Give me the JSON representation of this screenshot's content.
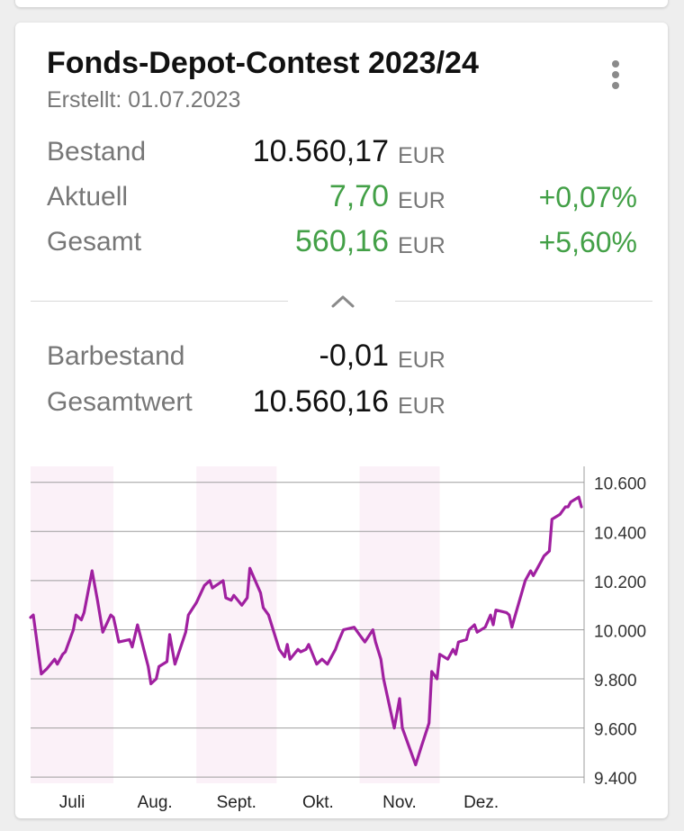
{
  "header": {
    "title": "Fonds-Depot-Contest 2023/24",
    "created": "Erstellt: 01.07.2023"
  },
  "summary": {
    "currency": "EUR",
    "rows": [
      {
        "label": "Bestand",
        "value": "10.560,17",
        "percent": ""
      },
      {
        "label": "Aktuell",
        "value": "7,70",
        "percent": "+0,07%"
      },
      {
        "label": "Gesamt",
        "value": "560,16",
        "percent": "+5,60%"
      }
    ],
    "cash": {
      "label": "Barbestand",
      "value": "-0,01"
    },
    "total": {
      "label": "Gesamtwert",
      "value": "10.560,16"
    }
  },
  "colors": {
    "positive": "#43a047",
    "line": "#a020a0",
    "band": "#fbf1f8"
  },
  "icons": {
    "menu": "more-vertical-icon",
    "collapse": "chevron-up-icon"
  },
  "chart_data": {
    "type": "line",
    "x_tick_labels": [
      "Juli",
      "Aug.",
      "Sept.",
      "Okt.",
      "Nov.",
      "Dez."
    ],
    "y_ticks": [
      9400,
      9600,
      9800,
      10000,
      10200,
      10400,
      10600
    ],
    "y_tick_labels": [
      "9.400",
      "9.600",
      "9.800",
      "10.000",
      "10.200",
      "10.400",
      "10.600"
    ],
    "ylim": [
      9375,
      10665
    ],
    "y_axis_position": "right",
    "grid": "horizontal",
    "shaded_months": [
      "Juli",
      "Sept.",
      "Nov."
    ],
    "series": [
      {
        "x": [
          "2023-07-01",
          "2023-07-02",
          "2023-07-04",
          "2023-07-05",
          "2023-07-07",
          "2023-07-10",
          "2023-07-11",
          "2023-07-13",
          "2023-07-14",
          "2023-07-17",
          "2023-07-18",
          "2023-07-20",
          "2023-07-21",
          "2023-07-24",
          "2023-07-26",
          "2023-07-28",
          "2023-07-31",
          "2023-08-01",
          "2023-08-02",
          "2023-08-03",
          "2023-08-07",
          "2023-08-08",
          "2023-08-10",
          "2023-08-14",
          "2023-08-15",
          "2023-08-17",
          "2023-08-18",
          "2023-08-21",
          "2023-08-22",
          "2023-08-24",
          "2023-08-28",
          "2023-08-29",
          "2023-09-01",
          "2023-09-04",
          "2023-09-06",
          "2023-09-07",
          "2023-09-11",
          "2023-09-12",
          "2023-09-14",
          "2023-09-15",
          "2023-09-18",
          "2023-09-20",
          "2023-09-21",
          "2023-09-25",
          "2023-09-26",
          "2023-09-28",
          "2023-10-02",
          "2023-10-04",
          "2023-10-05",
          "2023-10-06",
          "2023-10-09",
          "2023-10-10",
          "2023-10-12",
          "2023-10-13",
          "2023-10-16",
          "2023-10-18",
          "2023-10-20",
          "2023-10-23",
          "2023-10-24",
          "2023-10-26",
          "2023-10-30",
          "2023-11-01",
          "2023-11-03",
          "2023-11-06",
          "2023-11-07",
          "2023-11-09",
          "2023-11-10",
          "2023-11-14",
          "2023-11-16",
          "2023-11-17",
          "2023-11-20",
          "2023-11-22",
          "2023-11-24",
          "2023-11-27",
          "2023-11-28",
          "2023-11-30",
          "2023-12-01",
          "2023-12-04",
          "2023-12-06",
          "2023-12-07",
          "2023-12-08",
          "2023-12-11",
          "2023-12-12",
          "2023-12-14",
          "2023-12-15",
          "2023-12-18",
          "2023-12-20",
          "2023-12-21",
          "2023-12-22",
          "2023-12-26",
          "2023-12-27",
          "2023-12-28",
          "2023-12-29",
          "2024-01-02",
          "2024-01-04",
          "2024-01-05",
          "2024-01-08",
          "2024-01-09",
          "2024-01-11",
          "2024-01-12",
          "2024-01-15",
          "2024-01-17",
          "2024-01-18",
          "2024-01-19",
          "2024-01-22",
          "2024-01-23"
        ],
        "y": [
          10050,
          10060,
          9900,
          9820,
          9840,
          9880,
          9860,
          9900,
          9910,
          10000,
          10060,
          10040,
          10070,
          10240,
          10120,
          9990,
          10060,
          10050,
          10000,
          9950,
          9960,
          9930,
          10020,
          9850,
          9780,
          9800,
          9850,
          9870,
          9980,
          9860,
          9990,
          10060,
          10110,
          10180,
          10200,
          10170,
          10200,
          10130,
          10120,
          10140,
          10100,
          10130,
          10250,
          10150,
          10090,
          10060,
          9920,
          9890,
          9940,
          9880,
          9920,
          9910,
          9920,
          9940,
          9860,
          9880,
          9860,
          9920,
          9950,
          10000,
          10010,
          9980,
          9950,
          10000,
          9950,
          9880,
          9800,
          9600,
          9720,
          9600,
          9510,
          9450,
          9520,
          9620,
          9830,
          9800,
          9900,
          9880,
          9920,
          9900,
          9950,
          9960,
          10000,
          10020,
          9990,
          10010,
          10060,
          10020,
          10080,
          10070,
          10060,
          10010,
          10050,
          10200,
          10240,
          10220,
          10280,
          10300,
          10320,
          10450,
          10470,
          10500,
          10500,
          10520,
          10540,
          10500
        ]
      }
    ]
  }
}
